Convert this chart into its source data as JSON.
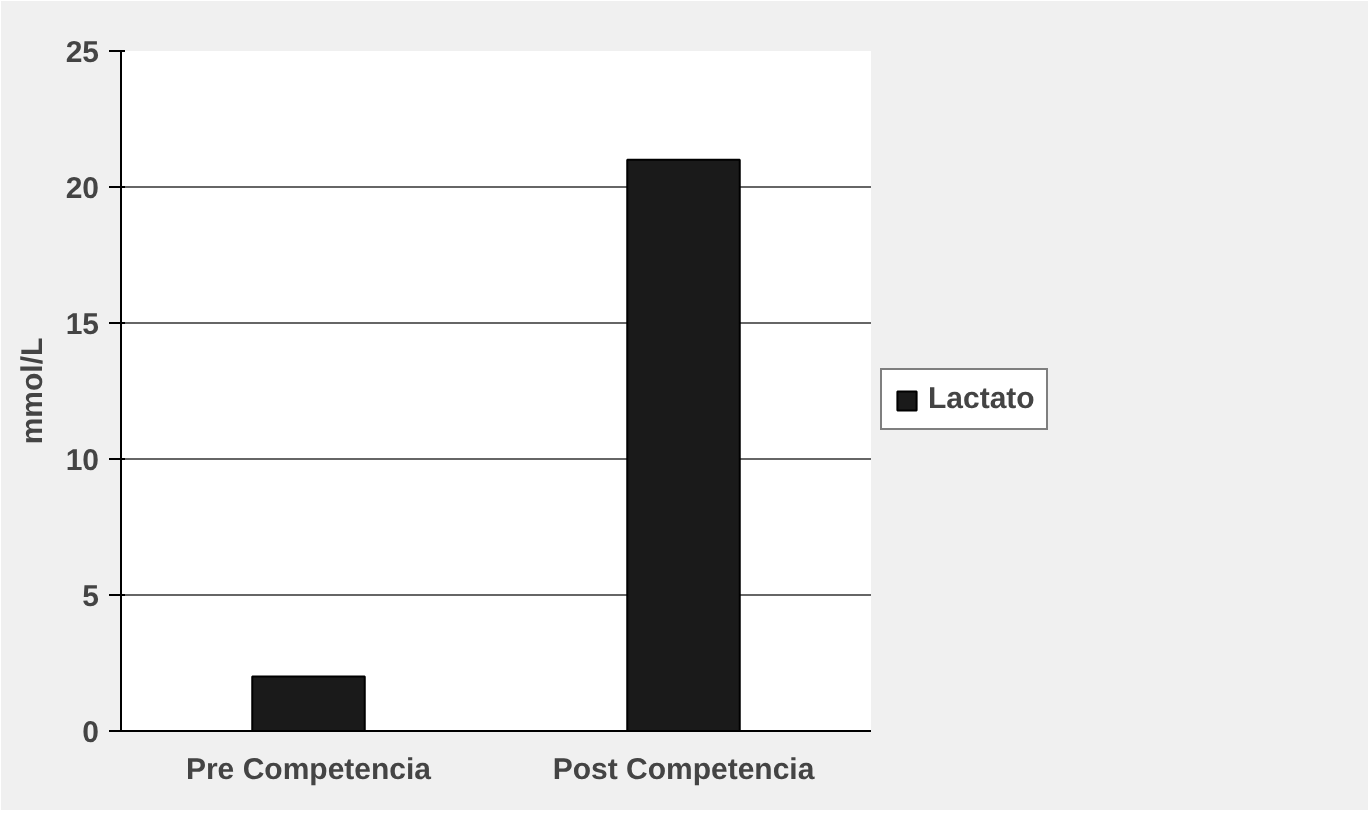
{
  "chart_data": {
    "type": "bar",
    "ylabel": "mmol/L",
    "categories": [
      "Pre Competencia",
      "Post Competencia"
    ],
    "series": [
      {
        "name": "Lactato",
        "color": "#1a1a1a",
        "values": [
          2,
          21
        ]
      }
    ],
    "ylim": [
      0,
      25
    ],
    "yticks": [
      0,
      5,
      10,
      15,
      20,
      25
    ],
    "grid": "y",
    "legend": "right"
  }
}
